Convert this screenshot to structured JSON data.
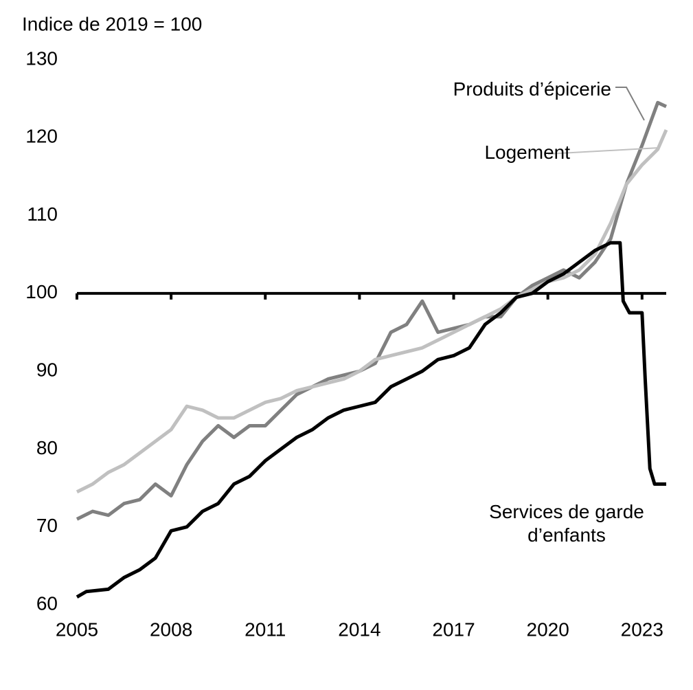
{
  "chart_data": {
    "type": "line",
    "y_label": "Indice de 2019 = 100",
    "xlim": [
      2005,
      2023.77
    ],
    "xticks": [
      2005,
      2008,
      2011,
      2014,
      2017,
      2020,
      2023
    ],
    "ylim": [
      60,
      130
    ],
    "yticks": [
      60,
      70,
      80,
      90,
      100,
      110,
      120,
      130
    ],
    "hline": 100,
    "series": [
      {
        "name": "Produits d’épicerie",
        "color": "#808080",
        "x": [
          2005,
          2005.5,
          2006,
          2006.5,
          2007,
          2007.5,
          2008,
          2008.5,
          2009,
          2009.5,
          2010,
          2010.5,
          2011,
          2011.5,
          2012,
          2012.5,
          2013,
          2013.5,
          2014,
          2014.5,
          2015,
          2015.5,
          2016,
          2016.5,
          2017,
          2017.5,
          2018,
          2018.5,
          2019,
          2019.5,
          2020,
          2020.5,
          2021,
          2021.5,
          2022,
          2022.5,
          2023,
          2023.5,
          2023.77
        ],
        "values": [
          71,
          72,
          71.5,
          73,
          73.5,
          75.5,
          74,
          78,
          81,
          83,
          81.5,
          83,
          83,
          85,
          87,
          88,
          89,
          89.5,
          90,
          91,
          95,
          96,
          99,
          95,
          95.5,
          96,
          97,
          97,
          99.5,
          101,
          102,
          103,
          102,
          104,
          107,
          114,
          119,
          124.5,
          124
        ]
      },
      {
        "name": "Logement",
        "color": "#c0c0c0",
        "x": [
          2005,
          2005.5,
          2006,
          2006.5,
          2007,
          2007.5,
          2008,
          2008.5,
          2009,
          2009.5,
          2010,
          2010.5,
          2011,
          2011.5,
          2012,
          2012.5,
          2013,
          2013.5,
          2014,
          2014.5,
          2015,
          2015.5,
          2016,
          2016.5,
          2017,
          2017.5,
          2018,
          2018.5,
          2019,
          2019.5,
          2020,
          2020.5,
          2021,
          2021.5,
          2022,
          2022.5,
          2023,
          2023.5,
          2023.77
        ],
        "values": [
          74.5,
          75.5,
          77,
          78,
          79.5,
          81,
          82.5,
          85.5,
          85,
          84,
          84,
          85,
          86,
          86.5,
          87.5,
          88,
          88.5,
          89,
          90,
          91.5,
          92,
          92.5,
          93,
          94,
          95,
          96,
          97,
          98,
          99.5,
          100.5,
          101.5,
          102,
          103,
          105,
          109,
          114,
          116.5,
          118.5,
          121
        ]
      },
      {
        "name": "Services de garde d’enfants",
        "color": "#000000",
        "x": [
          2005,
          2005.3,
          2006,
          2006.5,
          2007,
          2007.5,
          2008,
          2008.5,
          2009,
          2009.5,
          2010,
          2010.5,
          2011,
          2011.5,
          2012,
          2012.5,
          2013,
          2013.5,
          2014,
          2014.5,
          2015,
          2015.5,
          2016,
          2016.5,
          2017,
          2017.5,
          2018,
          2018.5,
          2019,
          2019.5,
          2020,
          2020.5,
          2021,
          2021.5,
          2022,
          2022.3,
          2022.4,
          2022.6,
          2023,
          2023.1,
          2023.25,
          2023.4,
          2023.77
        ],
        "values": [
          61,
          61.7,
          62,
          63.5,
          64.5,
          66,
          69.5,
          70,
          72,
          73,
          75.5,
          76.5,
          78.5,
          80,
          81.5,
          82.5,
          84,
          85,
          85.5,
          86,
          88,
          89,
          90,
          91.5,
          92,
          93,
          96,
          97.5,
          99.5,
          100,
          101.5,
          102.5,
          104,
          105.5,
          106.5,
          106.5,
          99,
          97.5,
          97.5,
          89,
          77.5,
          75.5,
          75.5
        ]
      }
    ]
  }
}
